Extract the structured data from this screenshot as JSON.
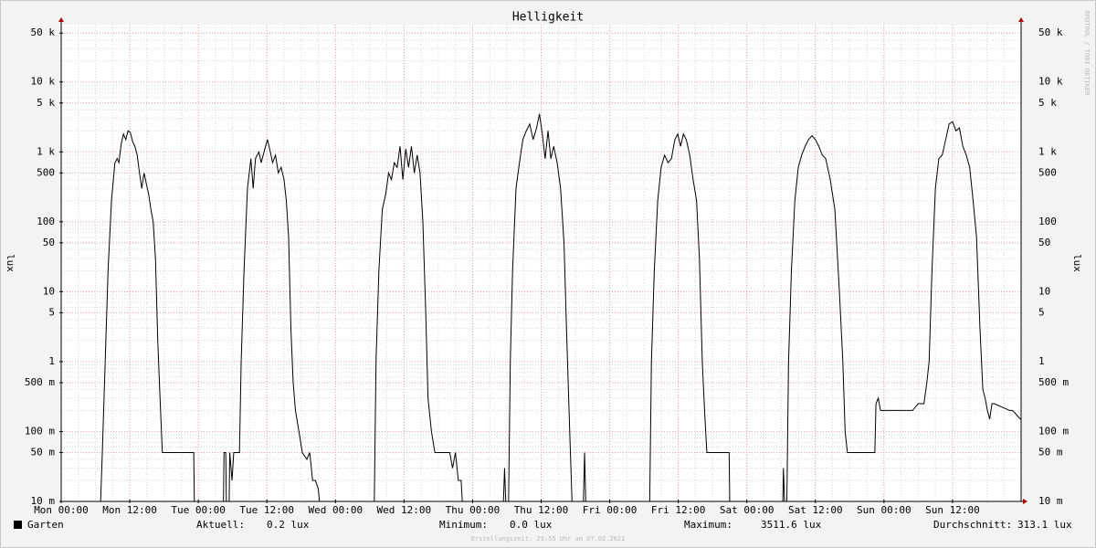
{
  "chart_data": {
    "type": "line",
    "title": "Helligkeit",
    "y_label": "lux",
    "watermark": "RRDTOOL / TOBI OETIKER",
    "footer": "Erstellungszeit: 23:55 Uhr am 07.02.2021",
    "log_scale": true,
    "grid": true,
    "xlim": [
      0,
      168
    ],
    "xticks": [
      {
        "value": 0,
        "label": "Mon 00:00"
      },
      {
        "value": 12,
        "label": "Mon 12:00"
      },
      {
        "value": 24,
        "label": "Tue 00:00"
      },
      {
        "value": 36,
        "label": "Tue 12:00"
      },
      {
        "value": 48,
        "label": "Wed 00:00"
      },
      {
        "value": 60,
        "label": "Wed 12:00"
      },
      {
        "value": 72,
        "label": "Thu 00:00"
      },
      {
        "value": 84,
        "label": "Thu 12:00"
      },
      {
        "value": 96,
        "label": "Fri 00:00"
      },
      {
        "value": 108,
        "label": "Fri 12:00"
      },
      {
        "value": 120,
        "label": "Sat 00:00"
      },
      {
        "value": 132,
        "label": "Sat 12:00"
      },
      {
        "value": 144,
        "label": "Sun 00:00"
      },
      {
        "value": 156,
        "label": "Sun 12:00"
      }
    ],
    "ylim": [
      0.01,
      66000
    ],
    "yticks": [
      {
        "value": 50000,
        "label": "50 k"
      },
      {
        "value": 10000,
        "label": "10 k"
      },
      {
        "value": 5000,
        "label": "5 k"
      },
      {
        "value": 1000,
        "label": "1 k"
      },
      500,
      100,
      50,
      10,
      5,
      1,
      {
        "value": 0.5,
        "label": "500 m"
      },
      {
        "value": 0.1,
        "label": "100 m"
      },
      {
        "value": 0.05,
        "label": "50 m"
      },
      {
        "value": 0.01,
        "label": "10 m"
      }
    ],
    "legend_stats": [
      {
        "label": "Aktuell:",
        "value": "0.2 lux"
      },
      {
        "label": "Minimum:",
        "value": "0.0 lux"
      },
      {
        "label": "Maximum:",
        "value": "3511.6 lux"
      },
      {
        "label": "Durchschnitt:",
        "value": "313.1 lux"
      }
    ],
    "series": [
      {
        "name": "Garten",
        "color": "#000000",
        "x": [
          0,
          6.9,
          7.2,
          7.7,
          8.2,
          8.8,
          9.4,
          9.8,
          10.1,
          10.5,
          10.9,
          11.3,
          11.7,
          12.1,
          12.5,
          12.9,
          13.3,
          13.7,
          14.1,
          14.5,
          14.9,
          15.3,
          15.7,
          16.1,
          16.5,
          16.9,
          17.3,
          17.7,
          23.2,
          23.3,
          28.4,
          28.5,
          28.8,
          28.9,
          29.4,
          29.5,
          29.9,
          30.2,
          30.6,
          31.2,
          31.5,
          32,
          32.6,
          33.2,
          33.6,
          34,
          34.6,
          35,
          35.5,
          36.1,
          36.6,
          37,
          37.5,
          38,
          38.5,
          39,
          39.4,
          39.8,
          40.2,
          40.6,
          41,
          41.8,
          42.2,
          43,
          43.5,
          44,
          44.5,
          45,
          45.2,
          54.8,
          55.1,
          55.6,
          56.2,
          56.8,
          57.3,
          57.8,
          58.3,
          58.8,
          59.3,
          59.8,
          60.3,
          60.8,
          61.3,
          61.8,
          62.3,
          62.8,
          63.3,
          63.8,
          64.2,
          64.8,
          65.4,
          68,
          68.5,
          69,
          69.5,
          70,
          70.2,
          77.4,
          77.6,
          77.8,
          78.3,
          78.6,
          79,
          79.6,
          80.2,
          80.8,
          81.4,
          82,
          82.6,
          83.2,
          83.7,
          84.2,
          84.7,
          85.2,
          85.7,
          86.2,
          86.8,
          87.4,
          88,
          88.5,
          89,
          89.4,
          91.4,
          91.6,
          91.8,
          103,
          103.3,
          103.8,
          104.4,
          105,
          105.6,
          106.2,
          106.8,
          107.4,
          107.9,
          108.4,
          108.9,
          109.4,
          110,
          110.6,
          111.2,
          111.7,
          112.2,
          112.6,
          113,
          116.9,
          117,
          126.3,
          126.4,
          126.6,
          127,
          127.3,
          127.8,
          128.4,
          129,
          129.6,
          130.2,
          130.8,
          131.4,
          132,
          132.6,
          133.2,
          133.8,
          134.6,
          135.4,
          136.2,
          136.8,
          137.2,
          137.6,
          142.4,
          142.6,
          143,
          143.4,
          149,
          150,
          151,
          151.5,
          151.9,
          152.4,
          153,
          153.6,
          154.2,
          154.8,
          155.4,
          156,
          156.6,
          157.2,
          157.8,
          158.4,
          159,
          159.6,
          160.2,
          160.8,
          161.3,
          161.7,
          162.1,
          162.5,
          162.9,
          163.3,
          166,
          166.5,
          167.9
        ],
        "values": [
          0.01,
          0.01,
          0.05,
          1,
          20,
          200,
          700,
          800,
          700,
          1300,
          1800,
          1500,
          2000,
          1900,
          1400,
          1200,
          900,
          500,
          300,
          500,
          350,
          250,
          150,
          100,
          30,
          2,
          0.3,
          0.05,
          0.05,
          0.01,
          0.01,
          0.05,
          0.05,
          0.01,
          0.01,
          0.05,
          0.02,
          0.05,
          0.05,
          0.05,
          1,
          20,
          300,
          800,
          300,
          800,
          1000,
          700,
          1000,
          1500,
          1000,
          700,
          900,
          500,
          600,
          400,
          200,
          60,
          3,
          0.5,
          0.2,
          0.08,
          0.05,
          0.04,
          0.05,
          0.02,
          0.02,
          0.015,
          0.01,
          0.01,
          1,
          20,
          150,
          250,
          500,
          400,
          700,
          600,
          1200,
          400,
          1100,
          600,
          1200,
          500,
          900,
          500,
          100,
          5,
          0.3,
          0.1,
          0.05,
          0.05,
          0.03,
          0.05,
          0.02,
          0.02,
          0.01,
          0.01,
          0.03,
          0.01,
          0.01,
          1,
          20,
          300,
          700,
          1500,
          2000,
          2500,
          1500,
          2200,
          3500,
          1800,
          800,
          2000,
          800,
          1200,
          700,
          300,
          50,
          2,
          0.1,
          0.01,
          0.01,
          0.05,
          0.01,
          0.01,
          1,
          20,
          200,
          600,
          900,
          700,
          800,
          1500,
          1800,
          1200,
          1800,
          1500,
          900,
          400,
          200,
          30,
          1,
          0.2,
          0.05,
          0.05,
          0.01,
          0.01,
          0.03,
          0.01,
          0.01,
          1,
          20,
          200,
          600,
          900,
          1200,
          1500,
          1700,
          1500,
          1200,
          900,
          800,
          400,
          150,
          10,
          1,
          0.1,
          0.05,
          0.05,
          0.25,
          0.3,
          0.2,
          0.2,
          0.25,
          0.25,
          0.5,
          1,
          20,
          300,
          800,
          900,
          1500,
          2500,
          2700,
          2000,
          2200,
          1200,
          900,
          600,
          200,
          60,
          3,
          0.4,
          0.3,
          0.2,
          0.15,
          0.25,
          0.25,
          0.2,
          0.2,
          0.15
        ]
      }
    ]
  }
}
